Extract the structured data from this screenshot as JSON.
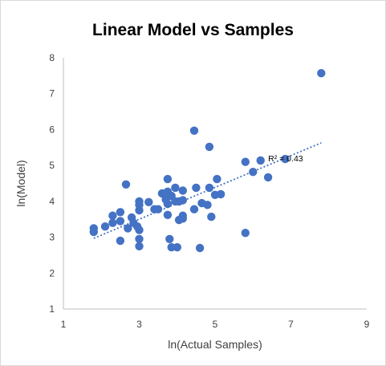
{
  "chart_data": {
    "type": "scatter",
    "title": "Linear Model vs Samples",
    "xlabel": "ln(Actual Samples)",
    "ylabel": "ln(Model)",
    "xlim": [
      1,
      9
    ],
    "ylim": [
      1,
      8
    ],
    "xticks": [
      "1",
      "3",
      "5",
      "7",
      "9"
    ],
    "yticks": [
      "1",
      "2",
      "3",
      "4",
      "5",
      "6",
      "7",
      "8"
    ],
    "grid": false,
    "marker_color": "#4472c4",
    "trendline": {
      "type": "linear",
      "x_range": [
        1.8,
        7.8
      ],
      "y_at_start": 2.97,
      "y_at_end": 5.63,
      "label": "R² = 0.43",
      "label_pos": [
        6.4,
        5.2
      ]
    },
    "points": [
      [
        1.8,
        3.25
      ],
      [
        1.8,
        3.15
      ],
      [
        2.1,
        3.3
      ],
      [
        2.3,
        3.6
      ],
      [
        2.3,
        3.4
      ],
      [
        2.5,
        3.7
      ],
      [
        2.5,
        3.45
      ],
      [
        2.5,
        2.9
      ],
      [
        2.65,
        4.47
      ],
      [
        2.7,
        3.25
      ],
      [
        2.8,
        3.55
      ],
      [
        2.85,
        3.4
      ],
      [
        2.95,
        3.3
      ],
      [
        3.0,
        3.2
      ],
      [
        3.0,
        2.95
      ],
      [
        3.0,
        2.75
      ],
      [
        3.0,
        4.0
      ],
      [
        3.0,
        3.9
      ],
      [
        3.0,
        3.75
      ],
      [
        3.25,
        3.98
      ],
      [
        3.4,
        3.78
      ],
      [
        3.5,
        3.78
      ],
      [
        3.6,
        4.22
      ],
      [
        3.7,
        4.05
      ],
      [
        3.75,
        4.27
      ],
      [
        3.75,
        4.62
      ],
      [
        3.75,
        3.93
      ],
      [
        3.75,
        3.62
      ],
      [
        3.8,
        2.95
      ],
      [
        3.85,
        2.72
      ],
      [
        3.85,
        4.15
      ],
      [
        3.95,
        4.0
      ],
      [
        3.95,
        4.38
      ],
      [
        4.0,
        2.72
      ],
      [
        4.05,
        4.0
      ],
      [
        4.05,
        3.48
      ],
      [
        4.15,
        4.3
      ],
      [
        4.15,
        3.6
      ],
      [
        4.15,
        3.52
      ],
      [
        4.15,
        4.03
      ],
      [
        4.45,
        5.97
      ],
      [
        4.45,
        3.78
      ],
      [
        4.5,
        4.38
      ],
      [
        4.6,
        2.7
      ],
      [
        4.65,
        3.95
      ],
      [
        4.8,
        3.9
      ],
      [
        4.85,
        5.52
      ],
      [
        4.85,
        4.38
      ],
      [
        4.9,
        3.57
      ],
      [
        5.0,
        4.18
      ],
      [
        5.05,
        4.62
      ],
      [
        5.15,
        4.2
      ],
      [
        5.8,
        5.1
      ],
      [
        5.8,
        3.12
      ],
      [
        6.0,
        4.82
      ],
      [
        6.2,
        5.14
      ],
      [
        6.4,
        4.67
      ],
      [
        6.85,
        5.18
      ],
      [
        7.8,
        7.57
      ]
    ]
  }
}
